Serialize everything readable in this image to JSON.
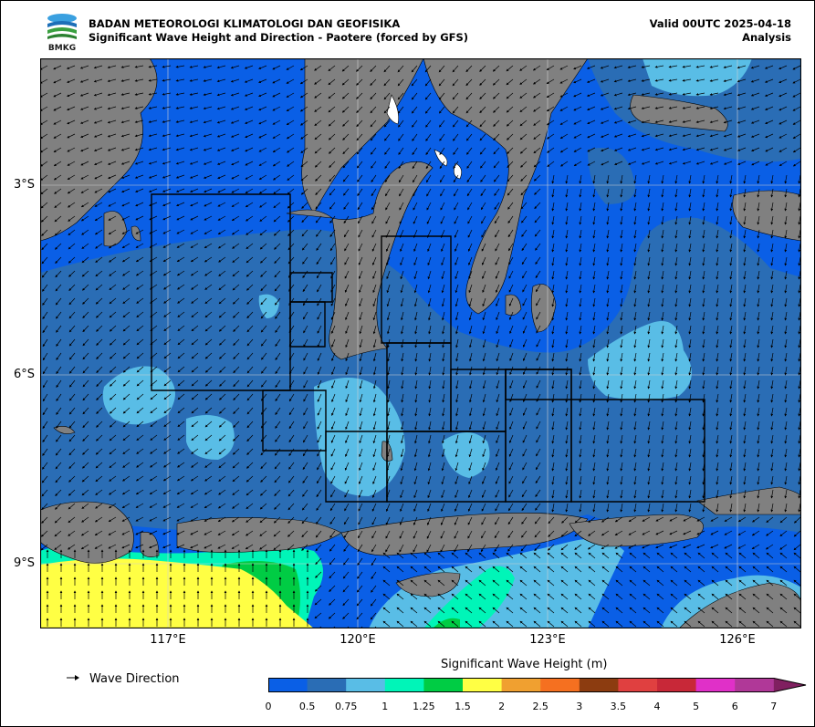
{
  "header": {
    "agency": "BADAN METEOROLOGI KLIMATOLOGI DAN GEOFISIKA",
    "subtitle": "Significant Wave Height and Direction - Paotere (forced by GFS)",
    "valid": "Valid 00UTC 2025-04-18",
    "mode": "Analysis",
    "logo_text": "BMKG"
  },
  "axes": {
    "lat_labels": [
      "3°S",
      "6°S",
      "9°S"
    ],
    "lon_labels": [
      "117°E",
      "120°E",
      "123°E",
      "126°E"
    ]
  },
  "legend": {
    "wave_direction_label": "Wave Direction",
    "colorbar_title": "Significant Wave Height (m)",
    "ticks": [
      "0",
      "0.5",
      "0.75",
      "1",
      "1.25",
      "1.5",
      "2",
      "2.5",
      "3",
      "3.5",
      "4",
      "5",
      "6",
      "7"
    ],
    "colors": [
      "#0a5fe6",
      "#2a6db5",
      "#59bde6",
      "#00f5b8",
      "#00cc44",
      "#ffff44",
      "#f0a030",
      "#f57020",
      "#8c3c10",
      "#e04040",
      "#c82838",
      "#e030c8",
      "#b03898",
      "#802060"
    ]
  },
  "map_colors": {
    "land": "#808080",
    "grid": "#d0d0d0"
  }
}
